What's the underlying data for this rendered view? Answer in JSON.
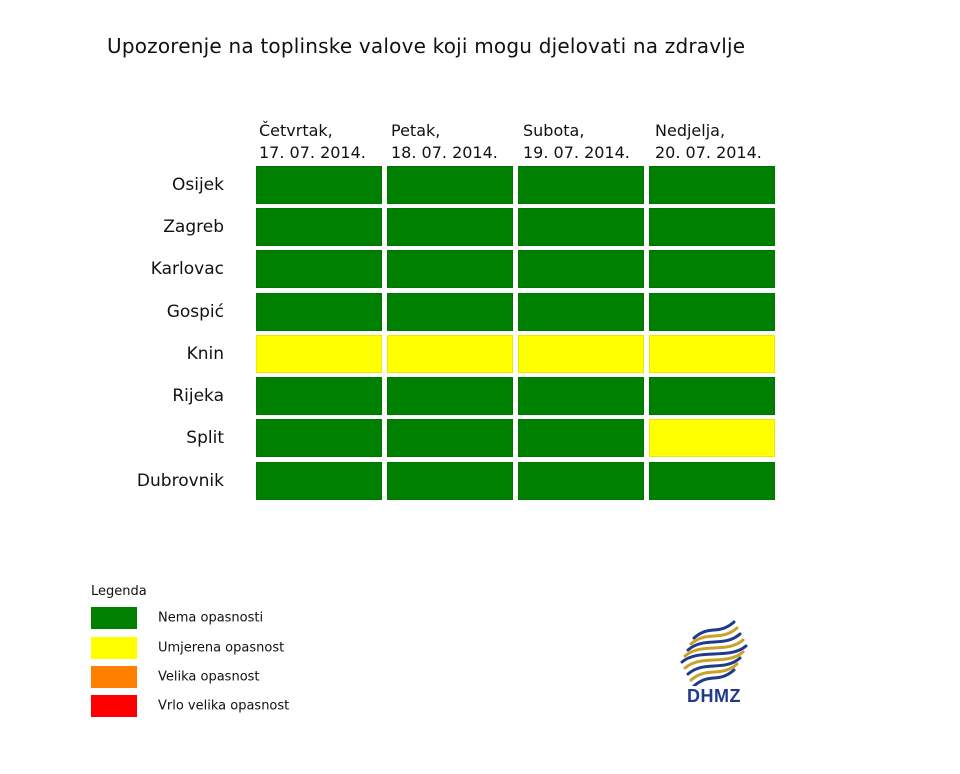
{
  "chart_data": {
    "type": "heatmap",
    "title": "Upozorenje na toplinske valove koji mogu djelovati na zdravlje",
    "columns": [
      {
        "day": "Četvrtak,",
        "date": "17. 07. 2014."
      },
      {
        "day": "Petak,",
        "date": "18. 07. 2014."
      },
      {
        "day": "Subota,",
        "date": "19. 07. 2014."
      },
      {
        "day": "Nedjelja,",
        "date": "20. 07. 2014."
      }
    ],
    "rows": [
      "Osijek",
      "Zagreb",
      "Karlovac",
      "Gospić",
      "Knin",
      "Rijeka",
      "Split",
      "Dubrovnik"
    ],
    "levels": [
      [
        0,
        0,
        0,
        0
      ],
      [
        0,
        0,
        0,
        0
      ],
      [
        0,
        0,
        0,
        0
      ],
      [
        0,
        0,
        0,
        0
      ],
      [
        1,
        1,
        1,
        1
      ],
      [
        0,
        0,
        0,
        0
      ],
      [
        0,
        0,
        0,
        1
      ],
      [
        0,
        0,
        0,
        0
      ]
    ],
    "legend": {
      "title": "Legenda",
      "items": [
        {
          "label": "Nema opasnosti",
          "color": "#008000"
        },
        {
          "label": "Umjerena opasnost",
          "color": "#ffff00"
        },
        {
          "label": "Velika opasnost",
          "color": "#ff8000"
        },
        {
          "label": "Vrlo velika opasnost",
          "color": "#ff0000"
        }
      ]
    }
  },
  "logo": {
    "text": "DHMZ",
    "accent_colors": [
      "#1f3a8a",
      "#c9a227"
    ]
  }
}
